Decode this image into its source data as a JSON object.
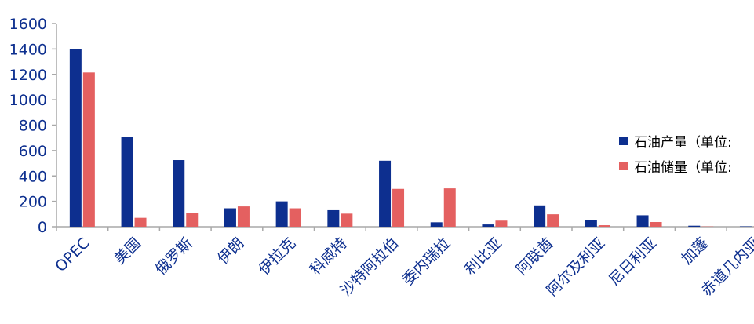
{
  "chart_data": {
    "type": "bar",
    "categories": [
      "OPEC",
      "美国",
      "俄罗斯",
      "伊朗",
      "伊拉克",
      "科威特",
      "沙特阿拉伯",
      "委内瑞拉",
      "利比亚",
      "阿联酋",
      "阿尔及利亚",
      "尼日利亚",
      "加蓬",
      "赤道几内亚"
    ],
    "series": [
      {
        "name": "石油产量（单位:",
        "color": "#0d2f8f",
        "values": [
          1400,
          710,
          525,
          145,
          200,
          130,
          520,
          35,
          18,
          168,
          55,
          90,
          8,
          3
        ]
      },
      {
        "name": "石油储量（单位:",
        "color": "#e46060",
        "values": [
          1215,
          70,
          108,
          160,
          145,
          103,
          298,
          302,
          48,
          98,
          12,
          37,
          2,
          1
        ]
      }
    ],
    "y_ticks": [
      "0",
      "200",
      "400",
      "600",
      "800",
      "1000",
      "1200",
      "1400",
      "1600"
    ],
    "ylim": [
      0,
      1600
    ],
    "grid": false,
    "legend_position": "right",
    "axis_label_color": "#0d2f8f",
    "axis_line_color": "#a9a9a9"
  }
}
